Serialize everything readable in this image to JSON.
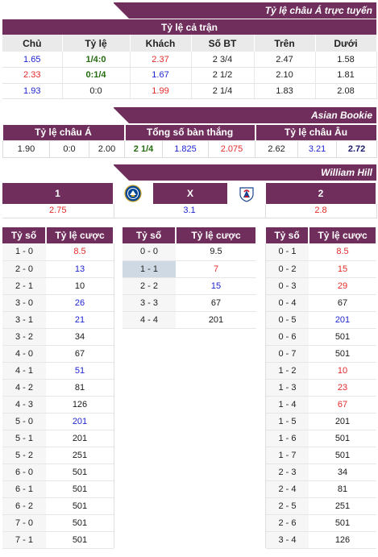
{
  "banners": {
    "live": "Tỷ lệ châu Á trực tuyến",
    "asian_bookie": "Asian Bookie",
    "william_hill": "William Hill"
  },
  "main": {
    "caption": "Tỷ lệ cả trận",
    "headers": [
      "Chủ",
      "Tỷ lệ",
      "Khách",
      "Số BT",
      "Trên",
      "Dưới"
    ],
    "rows": [
      {
        "home": "1.65",
        "line": "1/4:0",
        "away": "2.37",
        "goals": "2 3/4",
        "over": "2.47",
        "under": "1.58"
      },
      {
        "home": "2.33",
        "line": "0:1/4",
        "away": "1.67",
        "goals": "2 1/2",
        "over": "2.10",
        "under": "1.81"
      },
      {
        "home": "1.93",
        "line": "0:0",
        "away": "1.99",
        "goals": "2 1/4",
        "over": "1.83",
        "under": "2.08"
      }
    ]
  },
  "asian": {
    "headers": [
      "Tỷ lệ châu Á",
      "Tổng số bàn thắng",
      "Tỷ lệ châu Âu"
    ],
    "values": [
      "1.90",
      "0:0",
      "2.00",
      "2 1/4",
      "1.825",
      "2.075",
      "2.62",
      "3.21",
      "2.72"
    ]
  },
  "william": {
    "home_label": "1",
    "draw_label": "X",
    "away_label": "2",
    "home_odds": "2.75",
    "draw_odds": "3.1",
    "away_odds": "2.8",
    "home_crest": "chelsea-crest-icon",
    "away_crest": "crystal-palace-crest-icon"
  },
  "score_headers": {
    "score": "Tỷ số",
    "odds": "Tỷ lệ cược"
  },
  "home_scores": [
    {
      "s": "1 - 0",
      "o": "8.5",
      "c": "red"
    },
    {
      "s": "2 - 0",
      "o": "13",
      "c": "blue"
    },
    {
      "s": "2 - 1",
      "o": "10",
      "c": "dark"
    },
    {
      "s": "3 - 0",
      "o": "26",
      "c": "blue"
    },
    {
      "s": "3 - 1",
      "o": "21",
      "c": "blue"
    },
    {
      "s": "3 - 2",
      "o": "34",
      "c": "dark"
    },
    {
      "s": "4 - 0",
      "o": "67",
      "c": "dark"
    },
    {
      "s": "4 - 1",
      "o": "51",
      "c": "blue"
    },
    {
      "s": "4 - 2",
      "o": "81",
      "c": "dark"
    },
    {
      "s": "4 - 3",
      "o": "126",
      "c": "dark"
    },
    {
      "s": "5 - 0",
      "o": "201",
      "c": "blue"
    },
    {
      "s": "5 - 1",
      "o": "201",
      "c": "dark"
    },
    {
      "s": "5 - 2",
      "o": "251",
      "c": "dark"
    },
    {
      "s": "6 - 0",
      "o": "501",
      "c": "dark"
    },
    {
      "s": "6 - 1",
      "o": "501",
      "c": "dark"
    },
    {
      "s": "6 - 2",
      "o": "501",
      "c": "dark"
    },
    {
      "s": "7 - 0",
      "o": "501",
      "c": "dark"
    },
    {
      "s": "7 - 1",
      "o": "501",
      "c": "dark"
    }
  ],
  "draw_scores": [
    {
      "s": "0 - 0",
      "o": "9.5",
      "c": "dark"
    },
    {
      "s": "1 - 1",
      "o": "7",
      "c": "red",
      "hl": true
    },
    {
      "s": "2 - 2",
      "o": "15",
      "c": "blue"
    },
    {
      "s": "3 - 3",
      "o": "67",
      "c": "dark"
    },
    {
      "s": "4 - 4",
      "o": "201",
      "c": "dark"
    }
  ],
  "away_scores": [
    {
      "s": "0 - 1",
      "o": "8.5",
      "c": "red"
    },
    {
      "s": "0 - 2",
      "o": "15",
      "c": "red"
    },
    {
      "s": "0 - 3",
      "o": "29",
      "c": "red"
    },
    {
      "s": "0 - 4",
      "o": "67",
      "c": "dark"
    },
    {
      "s": "0 - 5",
      "o": "201",
      "c": "blue"
    },
    {
      "s": "0 - 6",
      "o": "501",
      "c": "dark"
    },
    {
      "s": "0 - 7",
      "o": "501",
      "c": "dark"
    },
    {
      "s": "1 - 2",
      "o": "10",
      "c": "red"
    },
    {
      "s": "1 - 3",
      "o": "23",
      "c": "red"
    },
    {
      "s": "1 - 4",
      "o": "67",
      "c": "red"
    },
    {
      "s": "1 - 5",
      "o": "201",
      "c": "dark"
    },
    {
      "s": "1 - 6",
      "o": "501",
      "c": "dark"
    },
    {
      "s": "1 - 7",
      "o": "501",
      "c": "dark"
    },
    {
      "s": "2 - 3",
      "o": "34",
      "c": "dark"
    },
    {
      "s": "2 - 4",
      "o": "81",
      "c": "dark"
    },
    {
      "s": "2 - 5",
      "o": "251",
      "c": "dark"
    },
    {
      "s": "2 - 6",
      "o": "501",
      "c": "dark"
    },
    {
      "s": "3 - 4",
      "o": "126",
      "c": "dark"
    }
  ],
  "colors": {
    "header": "#6f2e5c",
    "blue": "#1e24d0",
    "red": "#e32a2a",
    "green": "#256b10",
    "highlight": "#cfd9e3"
  }
}
